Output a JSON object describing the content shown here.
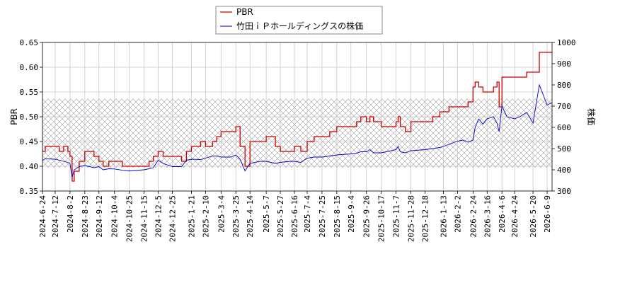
{
  "chart_data": {
    "type": "line",
    "title": "",
    "legend": {
      "position": "top-center"
    },
    "grid": true,
    "band": {
      "axis": "y_right",
      "range": [
        410,
        735
      ],
      "pattern": "crosshatch"
    },
    "xlabel": "",
    "x_ticks": [
      "2024-6-24",
      "2024-7-12",
      "2024-8-2",
      "2024-8-23",
      "2024-9-12",
      "2024-10-4",
      "2024-10-25",
      "2024-11-15",
      "2024-12-5",
      "2024-12-25",
      "2025-1-21",
      "2025-2-10",
      "2025-3-4",
      "2025-3-25",
      "2025-4-14",
      "2025-5-7",
      "2025-5-27",
      "2025-6-16",
      "2025-7-4",
      "2025-7-25",
      "2025-8-15",
      "2025-9-4",
      "2025-9-26",
      "2025-10-17",
      "2025-11-7",
      "2025-11-28",
      "2025-12-18",
      "2026-1-13",
      "2026-2-2",
      "2026-2-24",
      "2026-3-16",
      "2026-4-6",
      "2026-4-24",
      "2026-5-20",
      "2026-6-9"
    ],
    "y_left": {
      "label": "PBR",
      "lim": [
        0.35,
        0.65
      ],
      "ticks": [
        "0.35",
        "0.40",
        "0.45",
        "0.50",
        "0.55",
        "0.60",
        "0.65"
      ]
    },
    "y_right": {
      "label": "株価",
      "lim": [
        300,
        1000
      ],
      "ticks": [
        "300",
        "400",
        "500",
        "600",
        "700",
        "800",
        "900",
        "1000"
      ]
    },
    "series": [
      {
        "name": "PBR",
        "color": "#cc0000",
        "axis": "left",
        "x": [
          "2024-6-24",
          "2024-6-28",
          "2024-7-12",
          "2024-7-18",
          "2024-7-24",
          "2024-7-30",
          "2024-8-2",
          "2024-8-5",
          "2024-8-8",
          "2024-8-15",
          "2024-8-23",
          "2024-9-5",
          "2024-9-12",
          "2024-9-18",
          "2024-9-26",
          "2024-10-4",
          "2024-10-15",
          "2024-10-25",
          "2024-11-15",
          "2024-11-22",
          "2024-11-28",
          "2024-12-5",
          "2024-12-12",
          "2024-12-25",
          "2025-1-7",
          "2025-1-14",
          "2025-1-21",
          "2025-2-3",
          "2025-2-10",
          "2025-2-20",
          "2025-2-26",
          "2025-3-4",
          "2025-3-18",
          "2025-3-25",
          "2025-3-31",
          "2025-4-7",
          "2025-4-14",
          "2025-4-28",
          "2025-5-7",
          "2025-5-20",
          "2025-5-27",
          "2025-6-10",
          "2025-6-16",
          "2025-6-25",
          "2025-7-4",
          "2025-7-14",
          "2025-7-25",
          "2025-8-5",
          "2025-8-15",
          "2025-9-4",
          "2025-9-12",
          "2025-9-18",
          "2025-9-26",
          "2025-10-1",
          "2025-10-6",
          "2025-10-17",
          "2025-11-7",
          "2025-11-10",
          "2025-11-13",
          "2025-11-20",
          "2025-11-28",
          "2025-12-18",
          "2025-12-29",
          "2026-1-8",
          "2026-1-13",
          "2026-1-21",
          "2026-2-2",
          "2026-2-10",
          "2026-2-17",
          "2026-2-24",
          "2026-2-27",
          "2026-3-4",
          "2026-3-10",
          "2026-3-16",
          "2026-3-25",
          "2026-3-30",
          "2026-4-2",
          "2026-4-6",
          "2026-4-13",
          "2026-4-24",
          "2026-5-1",
          "2026-5-11",
          "2026-5-20",
          "2026-5-29",
          "2026-6-9",
          "2026-6-18"
        ],
        "values": [
          0.43,
          0.44,
          0.44,
          0.43,
          0.44,
          0.43,
          0.42,
          0.37,
          0.39,
          0.41,
          0.43,
          0.42,
          0.41,
          0.4,
          0.41,
          0.41,
          0.4,
          0.4,
          0.4,
          0.41,
          0.42,
          0.43,
          0.42,
          0.42,
          0.41,
          0.43,
          0.44,
          0.45,
          0.44,
          0.45,
          0.46,
          0.47,
          0.47,
          0.48,
          0.44,
          0.4,
          0.45,
          0.45,
          0.46,
          0.44,
          0.43,
          0.43,
          0.44,
          0.43,
          0.45,
          0.46,
          0.46,
          0.47,
          0.48,
          0.48,
          0.49,
          0.5,
          0.49,
          0.5,
          0.49,
          0.48,
          0.49,
          0.5,
          0.48,
          0.47,
          0.49,
          0.49,
          0.5,
          0.51,
          0.51,
          0.52,
          0.52,
          0.52,
          0.53,
          0.56,
          0.57,
          0.56,
          0.55,
          0.55,
          0.56,
          0.57,
          0.52,
          0.58,
          0.58,
          0.58,
          0.58,
          0.59,
          0.59,
          0.63,
          0.63,
          0.63
        ]
      },
      {
        "name": "竹田ｉＰホールディングスの株価",
        "color": "#0000cc",
        "axis": "right",
        "x": [
          "2024-6-24",
          "2024-6-28",
          "2024-7-12",
          "2024-7-18",
          "2024-7-24",
          "2024-7-30",
          "2024-8-2",
          "2024-8-5",
          "2024-8-8",
          "2024-8-15",
          "2024-8-23",
          "2024-9-5",
          "2024-9-12",
          "2024-9-18",
          "2024-9-26",
          "2024-10-4",
          "2024-10-15",
          "2024-10-25",
          "2024-11-15",
          "2024-11-22",
          "2024-11-28",
          "2024-12-5",
          "2024-12-12",
          "2024-12-25",
          "2025-1-7",
          "2025-1-14",
          "2025-1-21",
          "2025-2-3",
          "2025-2-10",
          "2025-2-20",
          "2025-2-26",
          "2025-3-4",
          "2025-3-18",
          "2025-3-25",
          "2025-3-31",
          "2025-4-7",
          "2025-4-14",
          "2025-4-28",
          "2025-5-7",
          "2025-5-20",
          "2025-5-27",
          "2025-6-10",
          "2025-6-16",
          "2025-6-25",
          "2025-7-4",
          "2025-7-14",
          "2025-7-25",
          "2025-8-5",
          "2025-8-15",
          "2025-9-4",
          "2025-9-12",
          "2025-9-18",
          "2025-9-26",
          "2025-10-1",
          "2025-10-6",
          "2025-10-17",
          "2025-11-7",
          "2025-11-10",
          "2025-11-13",
          "2025-11-20",
          "2025-11-28",
          "2025-12-18",
          "2025-12-29",
          "2026-1-8",
          "2026-1-13",
          "2026-1-21",
          "2026-2-2",
          "2026-2-10",
          "2026-2-17",
          "2026-2-24",
          "2026-2-27",
          "2026-3-4",
          "2026-3-10",
          "2026-3-16",
          "2026-3-25",
          "2026-3-30",
          "2026-4-2",
          "2026-4-6",
          "2026-4-13",
          "2026-4-24",
          "2026-5-1",
          "2026-5-11",
          "2026-5-20",
          "2026-5-29",
          "2026-6-9",
          "2026-6-18"
        ],
        "values": [
          445,
          452,
          450,
          445,
          440,
          435,
          430,
          365,
          400,
          415,
          420,
          410,
          415,
          400,
          405,
          404,
          398,
          395,
          400,
          405,
          410,
          445,
          430,
          415,
          415,
          445,
          450,
          448,
          455,
          465,
          465,
          460,
          460,
          470,
          450,
          395,
          430,
          440,
          440,
          430,
          435,
          440,
          440,
          435,
          455,
          460,
          460,
          465,
          470,
          475,
          478,
          485,
          485,
          495,
          480,
          480,
          495,
          510,
          485,
          480,
          490,
          495,
          500,
          505,
          510,
          520,
          535,
          540,
          530,
          540,
          600,
          640,
          615,
          640,
          650,
          620,
          580,
          700,
          650,
          640,
          650,
          670,
          620,
          800,
          705,
          720
        ]
      }
    ]
  }
}
